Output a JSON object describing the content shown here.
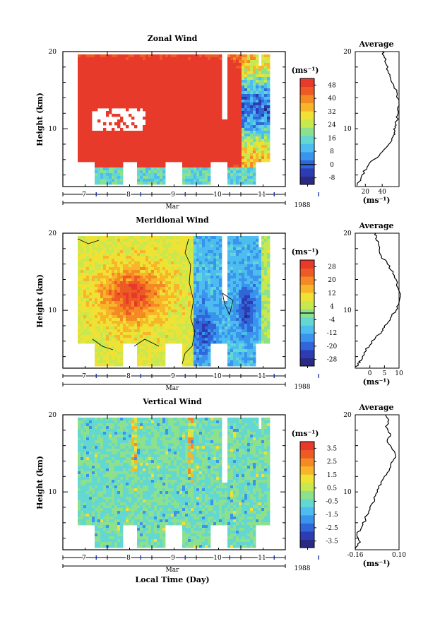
{
  "figure": {
    "xaxis_title": "Local Time (Day)",
    "month_label": "Mar",
    "year_label": "1988"
  },
  "chart_data": [
    {
      "type": "heatmap",
      "title": "Zonal Wind",
      "ylabel": "Height (km)",
      "xlabel": "Mar",
      "year": "1988",
      "x_ticks": [
        "7",
        "8",
        "9",
        "10",
        "11"
      ],
      "y_ticks": [
        "10",
        "20"
      ],
      "ylim": [
        2.5,
        20
      ],
      "colorbar": {
        "unit": "(ms⁻¹)",
        "ticks": [
          "-8",
          "0",
          "8",
          "16",
          "24",
          "32",
          "40",
          "48"
        ],
        "range": [
          -12,
          52
        ]
      },
      "profile": {
        "title": "Average",
        "xlabel": "(ms⁻¹)",
        "x_ticks": [
          "20",
          "40"
        ],
        "xlim": [
          8,
          60
        ],
        "points": [
          [
            10,
            2.6
          ],
          [
            16,
            4.0
          ],
          [
            22,
            5.0
          ],
          [
            30,
            6.0
          ],
          [
            40,
            7.0
          ],
          [
            48,
            8.0
          ],
          [
            53,
            9.0
          ],
          [
            55,
            9.6
          ],
          [
            55,
            10.3
          ],
          [
            57,
            11.0
          ],
          [
            59,
            12.0
          ],
          [
            60,
            13.0
          ],
          [
            58,
            14.5
          ],
          [
            54,
            15.5
          ],
          [
            50,
            16.5
          ],
          [
            47,
            17.5
          ],
          [
            44,
            18.5
          ],
          [
            42,
            19.5
          ],
          [
            40,
            20.0
          ]
        ]
      }
    },
    {
      "type": "heatmap",
      "title": "Meridional Wind",
      "ylabel": "Height (km)",
      "xlabel": "Mar",
      "year": "1988",
      "x_ticks": [
        "7",
        "8",
        "9",
        "10",
        "11"
      ],
      "y_ticks": [
        "10",
        "20"
      ],
      "ylim": [
        2.5,
        20
      ],
      "colorbar": {
        "unit": "(ms⁻¹)",
        "ticks": [
          "-28",
          "-20",
          "-12",
          "-4",
          "4",
          "12",
          "20",
          "28"
        ],
        "range": [
          -32,
          32
        ]
      },
      "profile": {
        "title": "Average",
        "xlabel": "(ms⁻¹)",
        "x_ticks": [
          "0",
          "5",
          "10"
        ],
        "xlim": [
          -5,
          10
        ],
        "points": [
          [
            -5,
            2.6
          ],
          [
            -4,
            3.0
          ],
          [
            -3,
            3.5
          ],
          [
            -2,
            4.5
          ],
          [
            0,
            5.5
          ],
          [
            2,
            6.5
          ],
          [
            4,
            7.2
          ],
          [
            5,
            8.0
          ],
          [
            7,
            9.0
          ],
          [
            9,
            10.0
          ],
          [
            10,
            11.0
          ],
          [
            10,
            12.5
          ],
          [
            9,
            14.0
          ],
          [
            8,
            15.0
          ],
          [
            6,
            16.0
          ],
          [
            4,
            17.0
          ],
          [
            3,
            18.5
          ],
          [
            2,
            19.3
          ],
          [
            2,
            20.0
          ]
        ]
      }
    },
    {
      "type": "heatmap",
      "title": "Vertical Wind",
      "ylabel": "Height (km)",
      "xlabel": "Mar",
      "year": "1988",
      "x_ticks": [
        "7",
        "8",
        "9",
        "10",
        "11"
      ],
      "y_ticks": [
        "10",
        "20"
      ],
      "ylim": [
        2.5,
        20
      ],
      "colorbar": {
        "unit": "(ms⁻¹)",
        "ticks": [
          "-3.5",
          "-2.5",
          "-1.5",
          "-0.5",
          "0.5",
          "1.5",
          "2.5",
          "3.5"
        ],
        "range": [
          -4,
          4
        ]
      },
      "profile": {
        "title": "Average",
        "xlabel": "(ms⁻¹)",
        "x_ticks": [
          "-0.16",
          "0.10"
        ],
        "xlim": [
          -0.16,
          0.1
        ],
        "points": [
          [
            -0.16,
            2.6
          ],
          [
            -0.13,
            3.5
          ],
          [
            -0.15,
            4.5
          ],
          [
            -0.12,
            5.5
          ],
          [
            -0.1,
            6.5
          ],
          [
            -0.08,
            7.5
          ],
          [
            -0.06,
            8.5
          ],
          [
            -0.04,
            9.5
          ],
          [
            -0.02,
            10.5
          ],
          [
            0.0,
            11.5
          ],
          [
            0.03,
            12.5
          ],
          [
            0.05,
            13.5
          ],
          [
            0.08,
            14.5
          ],
          [
            0.06,
            15.5
          ],
          [
            0.03,
            16.5
          ],
          [
            0.05,
            17.5
          ],
          [
            0.02,
            18.5
          ],
          [
            0.04,
            19.3
          ],
          [
            0.02,
            20.0
          ]
        ]
      }
    }
  ]
}
